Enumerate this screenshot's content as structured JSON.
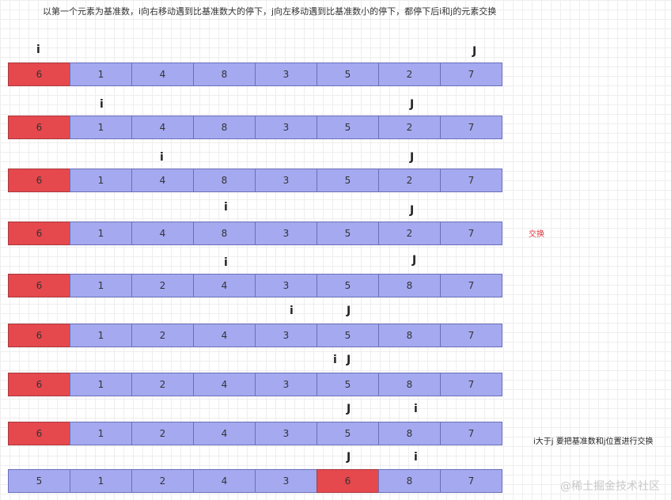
{
  "title": "以第一个元素为基准数，i向右移动遇到比基准数大的停下，j向左移动遇到比基准数小的停下，都停下后i和j的元素交换",
  "steps": [
    {
      "values": [
        "6",
        "1",
        "4",
        "8",
        "3",
        "5",
        "2",
        "7"
      ],
      "highlight": 0,
      "i": "i",
      "j": "J",
      "note": ""
    },
    {
      "values": [
        "6",
        "1",
        "4",
        "8",
        "3",
        "5",
        "2",
        "7"
      ],
      "highlight": 0,
      "i": "i",
      "j": "J",
      "note": ""
    },
    {
      "values": [
        "6",
        "1",
        "4",
        "8",
        "3",
        "5",
        "2",
        "7"
      ],
      "highlight": 0,
      "i": "i",
      "j": "J",
      "note": ""
    },
    {
      "values": [
        "6",
        "1",
        "4",
        "8",
        "3",
        "5",
        "2",
        "7"
      ],
      "highlight": 0,
      "i": "i",
      "j": "J",
      "note": "交换"
    },
    {
      "values": [
        "6",
        "1",
        "2",
        "4",
        "3",
        "5",
        "8",
        "7"
      ],
      "highlight": 0,
      "i": "i",
      "j": "J",
      "note": ""
    },
    {
      "values": [
        "6",
        "1",
        "2",
        "4",
        "3",
        "5",
        "8",
        "7"
      ],
      "highlight": 0,
      "i": "i",
      "j": "J",
      "note": ""
    },
    {
      "values": [
        "6",
        "1",
        "2",
        "4",
        "3",
        "5",
        "8",
        "7"
      ],
      "highlight": 0,
      "i": "i",
      "j": "J",
      "note": ""
    },
    {
      "values": [
        "6",
        "1",
        "2",
        "4",
        "3",
        "5",
        "8",
        "7"
      ],
      "highlight": 0,
      "i": "i",
      "j": "J",
      "note": "i大于j 要把基准数和j位置进行交换"
    },
    {
      "values": [
        "5",
        "1",
        "2",
        "4",
        "3",
        "6",
        "8",
        "7"
      ],
      "highlight": 5,
      "i": "i",
      "j": "J",
      "note": ""
    }
  ],
  "watermark": "@稀土掘金技术社区",
  "colors": {
    "cell": "#a4a9f0",
    "pivot": "#e5484d",
    "note_red": "#e0383e"
  }
}
